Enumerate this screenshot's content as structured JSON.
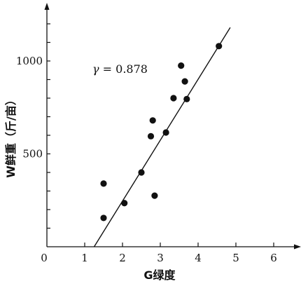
{
  "chart_data": {
    "type": "scatter",
    "xlabel": "G绿度",
    "ylabel": "W鲜重（斤/亩）",
    "xlim": [
      0,
      6.7
    ],
    "ylim": [
      0,
      1200
    ],
    "x_ticks": [
      0,
      1,
      2,
      3,
      4,
      5,
      6
    ],
    "x_tick_labels": [
      "0",
      "1",
      "2",
      "3",
      "4",
      "5",
      "6"
    ],
    "y_tick_labels": [
      {
        "value": 500,
        "label": "500"
      },
      {
        "value": 1000,
        "label": "1000"
      }
    ],
    "y_minor_ticks": [
      100,
      200,
      300,
      400,
      500,
      600,
      700,
      800,
      900,
      1000,
      1100,
      1200
    ],
    "points": [
      {
        "x": 1.5,
        "y": 340
      },
      {
        "x": 1.5,
        "y": 155
      },
      {
        "x": 2.05,
        "y": 235
      },
      {
        "x": 2.5,
        "y": 400
      },
      {
        "x": 2.75,
        "y": 595
      },
      {
        "x": 2.8,
        "y": 680
      },
      {
        "x": 2.85,
        "y": 275
      },
      {
        "x": 3.15,
        "y": 615
      },
      {
        "x": 3.35,
        "y": 800
      },
      {
        "x": 3.55,
        "y": 975
      },
      {
        "x": 3.65,
        "y": 890
      },
      {
        "x": 3.7,
        "y": 795
      },
      {
        "x": 4.55,
        "y": 1080
      }
    ],
    "regression_line": {
      "x": [
        1.25,
        4.85
      ],
      "y": [
        0,
        1180
      ]
    },
    "annotation": {
      "symbol": "γ",
      "text": " = 0.878"
    },
    "grid": false
  }
}
